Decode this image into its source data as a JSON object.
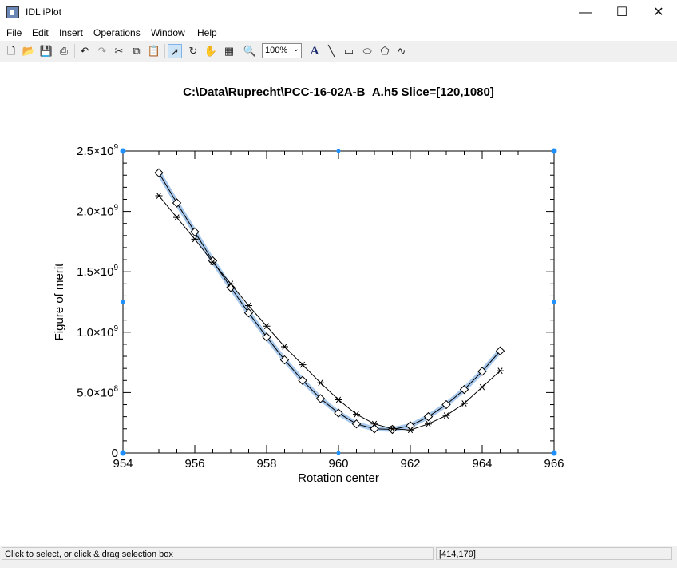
{
  "window": {
    "title": "IDL iPlot",
    "minimize": "—",
    "maximize": "☐",
    "close": "✕"
  },
  "menu": [
    "File",
    "Edit",
    "Insert",
    "Operations",
    "Window",
    "Help"
  ],
  "toolbar": {
    "zoom_value": "100%"
  },
  "status": {
    "message": "Click to select, or click & drag selection box",
    "coords": "[414,179]"
  },
  "colors": {
    "selection": "#a8c8ec",
    "handle": "#1e90ff"
  },
  "chart_data": {
    "type": "line",
    "title": "C:\\Data\\Ruprecht\\PCC-16-02A-B_A.h5   Slice=[120,1080]",
    "xlabel": "Rotation center",
    "ylabel": "Figure of merit",
    "xlim": [
      954,
      966
    ],
    "ylim": [
      0,
      2500000000
    ],
    "xticks": [
      "954",
      "956",
      "958",
      "960",
      "962",
      "964",
      "966"
    ],
    "yticks": [
      {
        "mant": "0",
        "exp": ""
      },
      {
        "mant": "5.0×10",
        "exp": "8"
      },
      {
        "mant": "1.0×10",
        "exp": "9"
      },
      {
        "mant": "1.5×10",
        "exp": "9"
      },
      {
        "mant": "2.0×10",
        "exp": "9"
      },
      {
        "mant": "2.5×10",
        "exp": "9"
      }
    ],
    "series": [
      {
        "marker": "diamond",
        "x": [
          955,
          955.5,
          956,
          956.5,
          957,
          957.5,
          958,
          958.5,
          959,
          959.5,
          960,
          960.5,
          961,
          961.5,
          962,
          962.5,
          963,
          963.5,
          964,
          964.5
        ],
        "values": [
          2320000000,
          2070000000,
          1830000000,
          1590000000,
          1370000000,
          1160000000,
          960000000,
          770000000,
          600000000,
          450000000,
          330000000,
          240000000,
          200000000,
          195000000,
          225000000,
          300000000,
          400000000,
          525000000,
          675000000,
          845000000
        ]
      },
      {
        "marker": "asterisk",
        "x": [
          955,
          955.5,
          956,
          956.5,
          957,
          957.5,
          958,
          958.5,
          959,
          959.5,
          960,
          960.5,
          961,
          961.5,
          962,
          962.5,
          963,
          963.5,
          964,
          964.5
        ],
        "values": [
          2130000000,
          1950000000,
          1770000000,
          1580000000,
          1400000000,
          1220000000,
          1050000000,
          880000000,
          730000000,
          580000000,
          440000000,
          320000000,
          240000000,
          200000000,
          190000000,
          240000000,
          310000000,
          410000000,
          545000000,
          680000000
        ]
      }
    ]
  }
}
